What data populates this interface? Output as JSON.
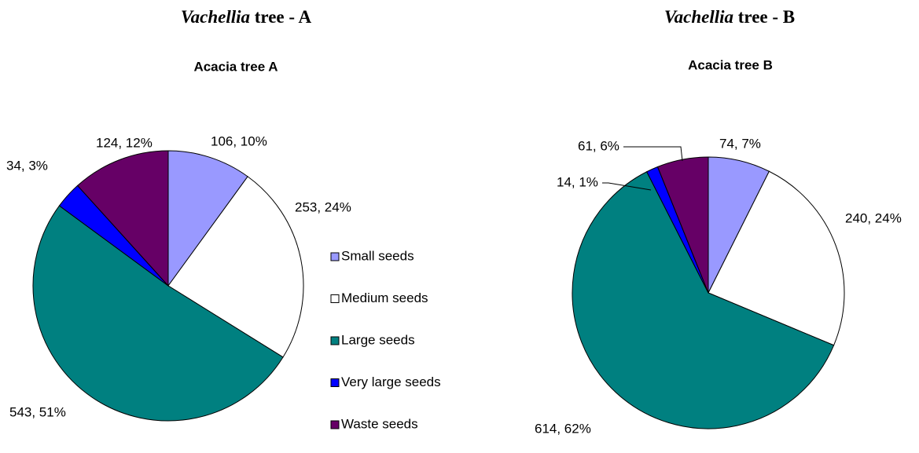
{
  "chart_data": [
    {
      "type": "pie",
      "title": {
        "italic": "Vachellia",
        "rest": "tree - A"
      },
      "subtitle": "Acacia tree A",
      "categories": [
        "Small seeds",
        "Medium seeds",
        "Large seeds",
        "Very large seeds",
        "Waste seeds"
      ],
      "values": [
        106,
        253,
        543,
        34,
        124
      ],
      "value_labels": [
        "106, 10%",
        "253, 24%",
        "543, 51%",
        "34, 3%",
        "124, 12%"
      ],
      "colors": [
        "#9999ff",
        "#ffffff",
        "#008080",
        "#0000ff",
        "#660066"
      ],
      "legend": "right"
    },
    {
      "type": "pie",
      "title": {
        "italic": "Vachellia",
        "rest": "tree - B"
      },
      "subtitle": "Acacia tree B",
      "values": [
        74,
        240,
        614,
        14,
        61
      ],
      "value_labels": [
        "74, 7%",
        "240, 24%",
        "614, 62%",
        "14, 1%",
        "61, 6%"
      ],
      "colors": [
        "#9999ff",
        "#ffffff",
        "#008080",
        "#0000ff",
        "#660066"
      ]
    }
  ]
}
